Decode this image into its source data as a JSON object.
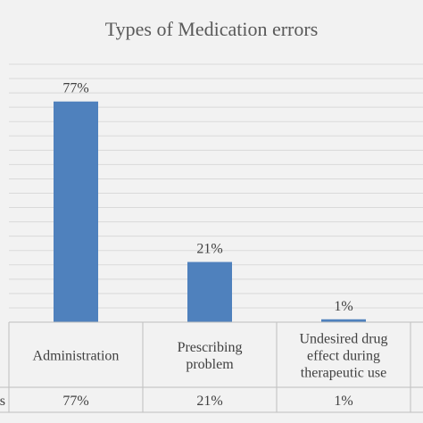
{
  "chart_data": {
    "type": "bar",
    "title": "Types of Medication errors",
    "categories": [
      [
        "Administration"
      ],
      [
        "Prescribing",
        "problem"
      ],
      [
        "Undesired drug",
        "effect during",
        "therapeutic use"
      ]
    ],
    "values": [
      77,
      21,
      1
    ],
    "data_labels": [
      "77%",
      "21%",
      "1%"
    ],
    "table_row_label": "s",
    "table_values": [
      "77%",
      "21%",
      "1%"
    ],
    "ylim": [
      0,
      90
    ],
    "grid": true,
    "colors": {
      "bar": "#4f81bd",
      "grid": "#d9d9d9",
      "axis": "#bfbfbf",
      "background": "#f2f2f2"
    }
  }
}
